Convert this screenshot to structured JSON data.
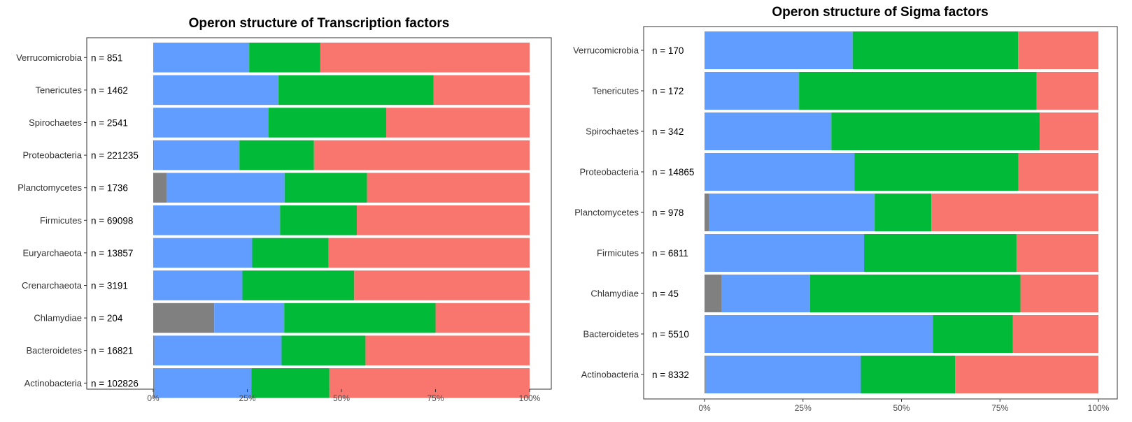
{
  "colors": {
    "gray": "#808080",
    "blue": "#619CFF",
    "green": "#00BA38",
    "red": "#F8766D"
  },
  "chart_data": [
    {
      "type": "bar",
      "orientation": "horizontal",
      "stacked": true,
      "normalized": true,
      "title": "Operon structure of Transcription factors",
      "xlabel": "",
      "ylabel": "",
      "xlim": [
        0,
        1
      ],
      "x_ticks": [
        "0%",
        "25%",
        "50%",
        "75%",
        "100%"
      ],
      "categories": [
        "Verrucomicrobia",
        "Tenericutes",
        "Spirochaetes",
        "Proteobacteria",
        "Planctomycetes",
        "Firmicutes",
        "Euryarchaeota",
        "Crenarchaeota",
        "Chlamydiae",
        "Bacteroidetes",
        "Actinobacteria"
      ],
      "n_labels": [
        "n = 851",
        "n = 1462",
        "n = 2541",
        "n = 221235",
        "n = 1736",
        "n = 69098",
        "n = 13857",
        "n = 3191",
        "n = 204",
        "n = 16821",
        "n = 102826"
      ],
      "series": [
        {
          "color": "#808080",
          "values": [
            0.0,
            0.0,
            0.0,
            0.002,
            0.036,
            0.0,
            0.0,
            0.0,
            0.162,
            0.003,
            0.003
          ]
        },
        {
          "color": "#619CFF",
          "values": [
            0.255,
            0.333,
            0.306,
            0.227,
            0.313,
            0.337,
            0.263,
            0.237,
            0.186,
            0.338,
            0.258
          ]
        },
        {
          "color": "#00BA38",
          "values": [
            0.189,
            0.412,
            0.313,
            0.198,
            0.219,
            0.204,
            0.203,
            0.297,
            0.402,
            0.223,
            0.207
          ]
        },
        {
          "color": "#F8766D",
          "values": [
            0.556,
            0.255,
            0.381,
            0.573,
            0.432,
            0.459,
            0.534,
            0.466,
            0.25,
            0.436,
            0.532
          ]
        }
      ],
      "grid": false,
      "legend": "none"
    },
    {
      "type": "bar",
      "orientation": "horizontal",
      "stacked": true,
      "normalized": true,
      "title": "Operon structure of Sigma factors",
      "xlabel": "",
      "ylabel": "",
      "xlim": [
        0,
        1
      ],
      "x_ticks": [
        "0%",
        "25%",
        "50%",
        "75%",
        "100%"
      ],
      "categories": [
        "Verrucomicrobia",
        "Tenericutes",
        "Spirochaetes",
        "Proteobacteria",
        "Planctomycetes",
        "Firmicutes",
        "Chlamydiae",
        "Bacteroidetes",
        "Actinobacteria"
      ],
      "n_labels": [
        "n = 170",
        "n = 172",
        "n = 342",
        "n = 14865",
        "n = 978",
        "n = 6811",
        "n = 45",
        "n = 5510",
        "n = 8332"
      ],
      "series": [
        {
          "color": "#808080",
          "values": [
            0.0,
            0.0,
            0.0,
            0.0,
            0.012,
            0.0,
            0.044,
            0.0,
            0.003
          ]
        },
        {
          "color": "#619CFF",
          "values": [
            0.376,
            0.24,
            0.322,
            0.381,
            0.42,
            0.405,
            0.224,
            0.58,
            0.394
          ]
        },
        {
          "color": "#00BA38",
          "values": [
            0.42,
            0.603,
            0.529,
            0.416,
            0.144,
            0.387,
            0.534,
            0.203,
            0.239
          ]
        },
        {
          "color": "#F8766D",
          "values": [
            0.204,
            0.157,
            0.149,
            0.203,
            0.424,
            0.208,
            0.198,
            0.217,
            0.364
          ]
        }
      ],
      "grid": false,
      "legend": "none"
    }
  ]
}
